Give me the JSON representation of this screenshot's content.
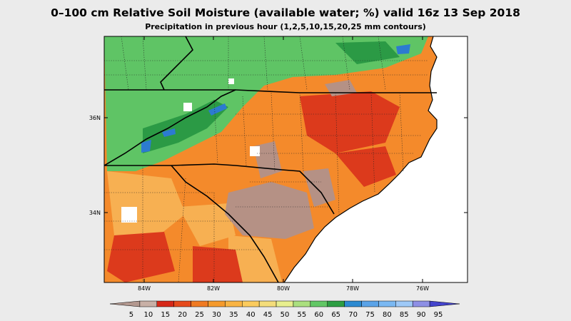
{
  "title": "0–100 cm Relative Soil Moisture (available water; %) valid 16z 13 Sep 2018",
  "subtitle": "Precipitation in previous hour (1,2,5,10,15,20,25 mm contours)",
  "axes": {
    "lon_labels": [
      "84W",
      "82W",
      "80W",
      "78W",
      "76W"
    ],
    "lat_labels": [
      "36N",
      "34N"
    ]
  },
  "colorbar": {
    "labels": [
      "5",
      "10",
      "15",
      "20",
      "25",
      "30",
      "35",
      "40",
      "45",
      "50",
      "55",
      "60",
      "65",
      "70",
      "75",
      "80",
      "85",
      "90",
      "95"
    ],
    "colors": [
      "#b3988f",
      "#c8b0a6",
      "#d62818",
      "#e64a1c",
      "#f07a22",
      "#f59a2c",
      "#f9b443",
      "#fbcb5d",
      "#f4dd7a",
      "#e8ef8e",
      "#abe07f",
      "#62c765",
      "#2e9e43",
      "#2d8ad1",
      "#5aa3e8",
      "#7ab8f2",
      "#9ec9f7",
      "#8d8fe5",
      "#4444cc"
    ]
  },
  "map_colors": {
    "ocean": "#ffffff",
    "orange": "#f48a2b",
    "light_orange": "#f7b052",
    "red": "#dc3a1c",
    "brown": "#b59185",
    "green": "#5fc465",
    "dark_green": "#2b9a45",
    "blue": "#2c7bd0",
    "white_patch": "#ffffff"
  }
}
